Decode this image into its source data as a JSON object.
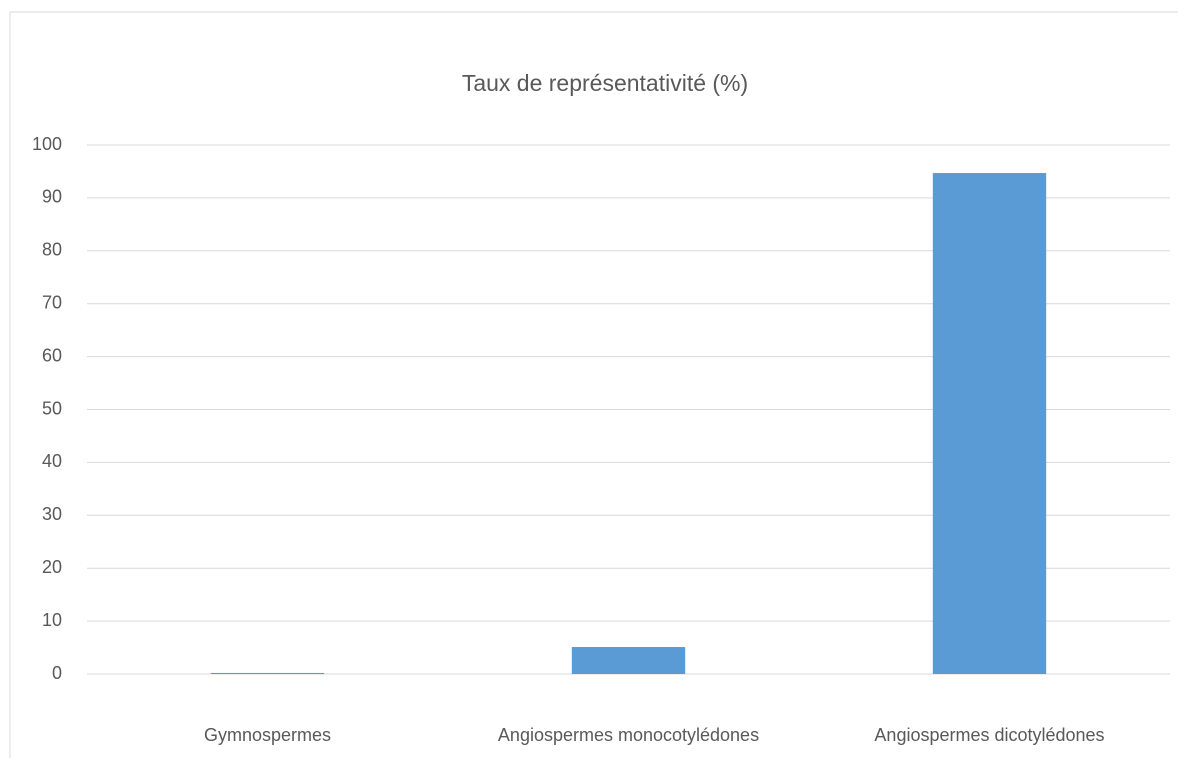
{
  "chart_data": {
    "type": "bar",
    "title": "Taux de représentativité (%)",
    "categories": [
      "Gymnospermes",
      "Angiospermes monocotylédones",
      "Angiospermes dicotylédones"
    ],
    "values": [
      0.2,
      5.1,
      94.7
    ],
    "color": "#5b9bd5",
    "ylim": [
      0,
      100
    ],
    "yticks": [
      0,
      10,
      20,
      30,
      40,
      50,
      60,
      70,
      80,
      90,
      100
    ],
    "grid": true
  }
}
